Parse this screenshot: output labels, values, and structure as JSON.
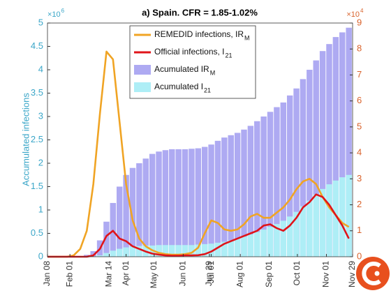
{
  "chart_data": {
    "type": "bar-line",
    "title": "a) Spain. CFR = 1.85-1.02%",
    "ylabel": "Accumulated infections",
    "y_scale": {
      "base": "×10",
      "exponent": "6"
    },
    "y2_scale": {
      "base": "×10",
      "exponent": "4"
    },
    "xlim": [
      0,
      326
    ],
    "xticks": [
      {
        "value": 0,
        "label": "Jan 08"
      },
      {
        "value": 24,
        "label": "Feb 01"
      },
      {
        "value": 66,
        "label": "Mar 14"
      },
      {
        "value": 84,
        "label": "Apr 01"
      },
      {
        "value": 114,
        "label": "May 01"
      },
      {
        "value": 145,
        "label": "Jun 01"
      },
      {
        "value": 173,
        "label": "Jun 29"
      },
      {
        "value": 175,
        "label": "Jul 01"
      },
      {
        "value": 206,
        "label": "Aug 01"
      },
      {
        "value": 237,
        "label": "Sep 01"
      },
      {
        "value": 267,
        "label": "Oct 01"
      },
      {
        "value": 298,
        "label": "Nov 01"
      },
      {
        "value": 326,
        "label": "Nov 29"
      }
    ],
    "ylim": [
      0,
      5
    ],
    "yticks": [
      0,
      0.5,
      1,
      1.5,
      2,
      2.5,
      3,
      3.5,
      4,
      4.5,
      5
    ],
    "y2lim": [
      0,
      9
    ],
    "y2ticks": [
      0,
      1,
      2,
      3,
      4,
      5,
      6,
      7,
      8,
      9
    ],
    "x": [
      0,
      7,
      14,
      21,
      28,
      35,
      42,
      49,
      56,
      63,
      70,
      77,
      84,
      91,
      98,
      105,
      112,
      119,
      126,
      133,
      140,
      147,
      154,
      161,
      168,
      175,
      182,
      189,
      196,
      203,
      210,
      217,
      224,
      231,
      238,
      245,
      252,
      259,
      266,
      273,
      280,
      287,
      294,
      301,
      308,
      315,
      322
    ],
    "series": [
      {
        "name": "REMEDID infections, IR",
        "name_sub": "M",
        "kind": "line",
        "axis": "y2",
        "color": "#f0a424",
        "values": [
          0,
          0,
          0,
          0,
          0.05,
          0.3,
          1.0,
          2.8,
          5.5,
          7.9,
          7.6,
          5.2,
          2.8,
          1.4,
          0.7,
          0.4,
          0.25,
          0.15,
          0.1,
          0.08,
          0.08,
          0.1,
          0.15,
          0.35,
          0.9,
          1.4,
          1.3,
          1.05,
          1.0,
          1.05,
          1.25,
          1.55,
          1.65,
          1.5,
          1.5,
          1.7,
          1.9,
          2.2,
          2.6,
          2.9,
          3.0,
          2.8,
          2.3,
          1.9,
          1.6,
          1.3,
          1.15
        ]
      },
      {
        "name": "Official infections, I",
        "name_sub": "21",
        "kind": "line",
        "axis": "y2",
        "color": "#e0141a",
        "values": [
          0,
          0,
          0,
          0,
          0,
          0,
          0,
          0.05,
          0.3,
          0.8,
          1.0,
          0.7,
          0.6,
          0.4,
          0.3,
          0.2,
          0.12,
          0.08,
          0.05,
          0.04,
          0.04,
          0.05,
          0.05,
          0.06,
          0.1,
          0.2,
          0.35,
          0.5,
          0.6,
          0.7,
          0.8,
          0.9,
          1.0,
          1.2,
          1.25,
          1.1,
          1.0,
          1.2,
          1.5,
          1.9,
          2.1,
          2.4,
          2.3,
          2.0,
          1.6,
          1.2,
          0.7
        ]
      },
      {
        "name": "Acumulated IR",
        "name_sub": "M",
        "kind": "bar",
        "axis": "y",
        "color": "#aeaaf2",
        "values": [
          0,
          0,
          0,
          0,
          0,
          0.01,
          0.04,
          0.12,
          0.35,
          0.75,
          1.15,
          1.5,
          1.75,
          1.9,
          2.0,
          2.1,
          2.2,
          2.25,
          2.28,
          2.3,
          2.3,
          2.3,
          2.31,
          2.32,
          2.35,
          2.4,
          2.48,
          2.55,
          2.6,
          2.65,
          2.72,
          2.8,
          2.9,
          3.0,
          3.1,
          3.2,
          3.3,
          3.45,
          3.6,
          3.8,
          4.0,
          4.2,
          4.4,
          4.55,
          4.7,
          4.8,
          4.9
        ]
      },
      {
        "name": "Acumulated I",
        "name_sub": "21",
        "kind": "bar",
        "axis": "y",
        "color": "#aeeef6",
        "values": [
          0,
          0,
          0,
          0,
          0,
          0,
          0,
          0.01,
          0.03,
          0.08,
          0.13,
          0.17,
          0.2,
          0.22,
          0.23,
          0.24,
          0.24,
          0.25,
          0.25,
          0.25,
          0.25,
          0.25,
          0.25,
          0.26,
          0.27,
          0.28,
          0.3,
          0.32,
          0.35,
          0.39,
          0.43,
          0.48,
          0.53,
          0.58,
          0.64,
          0.7,
          0.77,
          0.86,
          0.96,
          1.08,
          1.2,
          1.33,
          1.45,
          1.55,
          1.63,
          1.7,
          1.75
        ]
      }
    ],
    "left_color": "#3aa6c8",
    "right_color": "#d9622b"
  }
}
